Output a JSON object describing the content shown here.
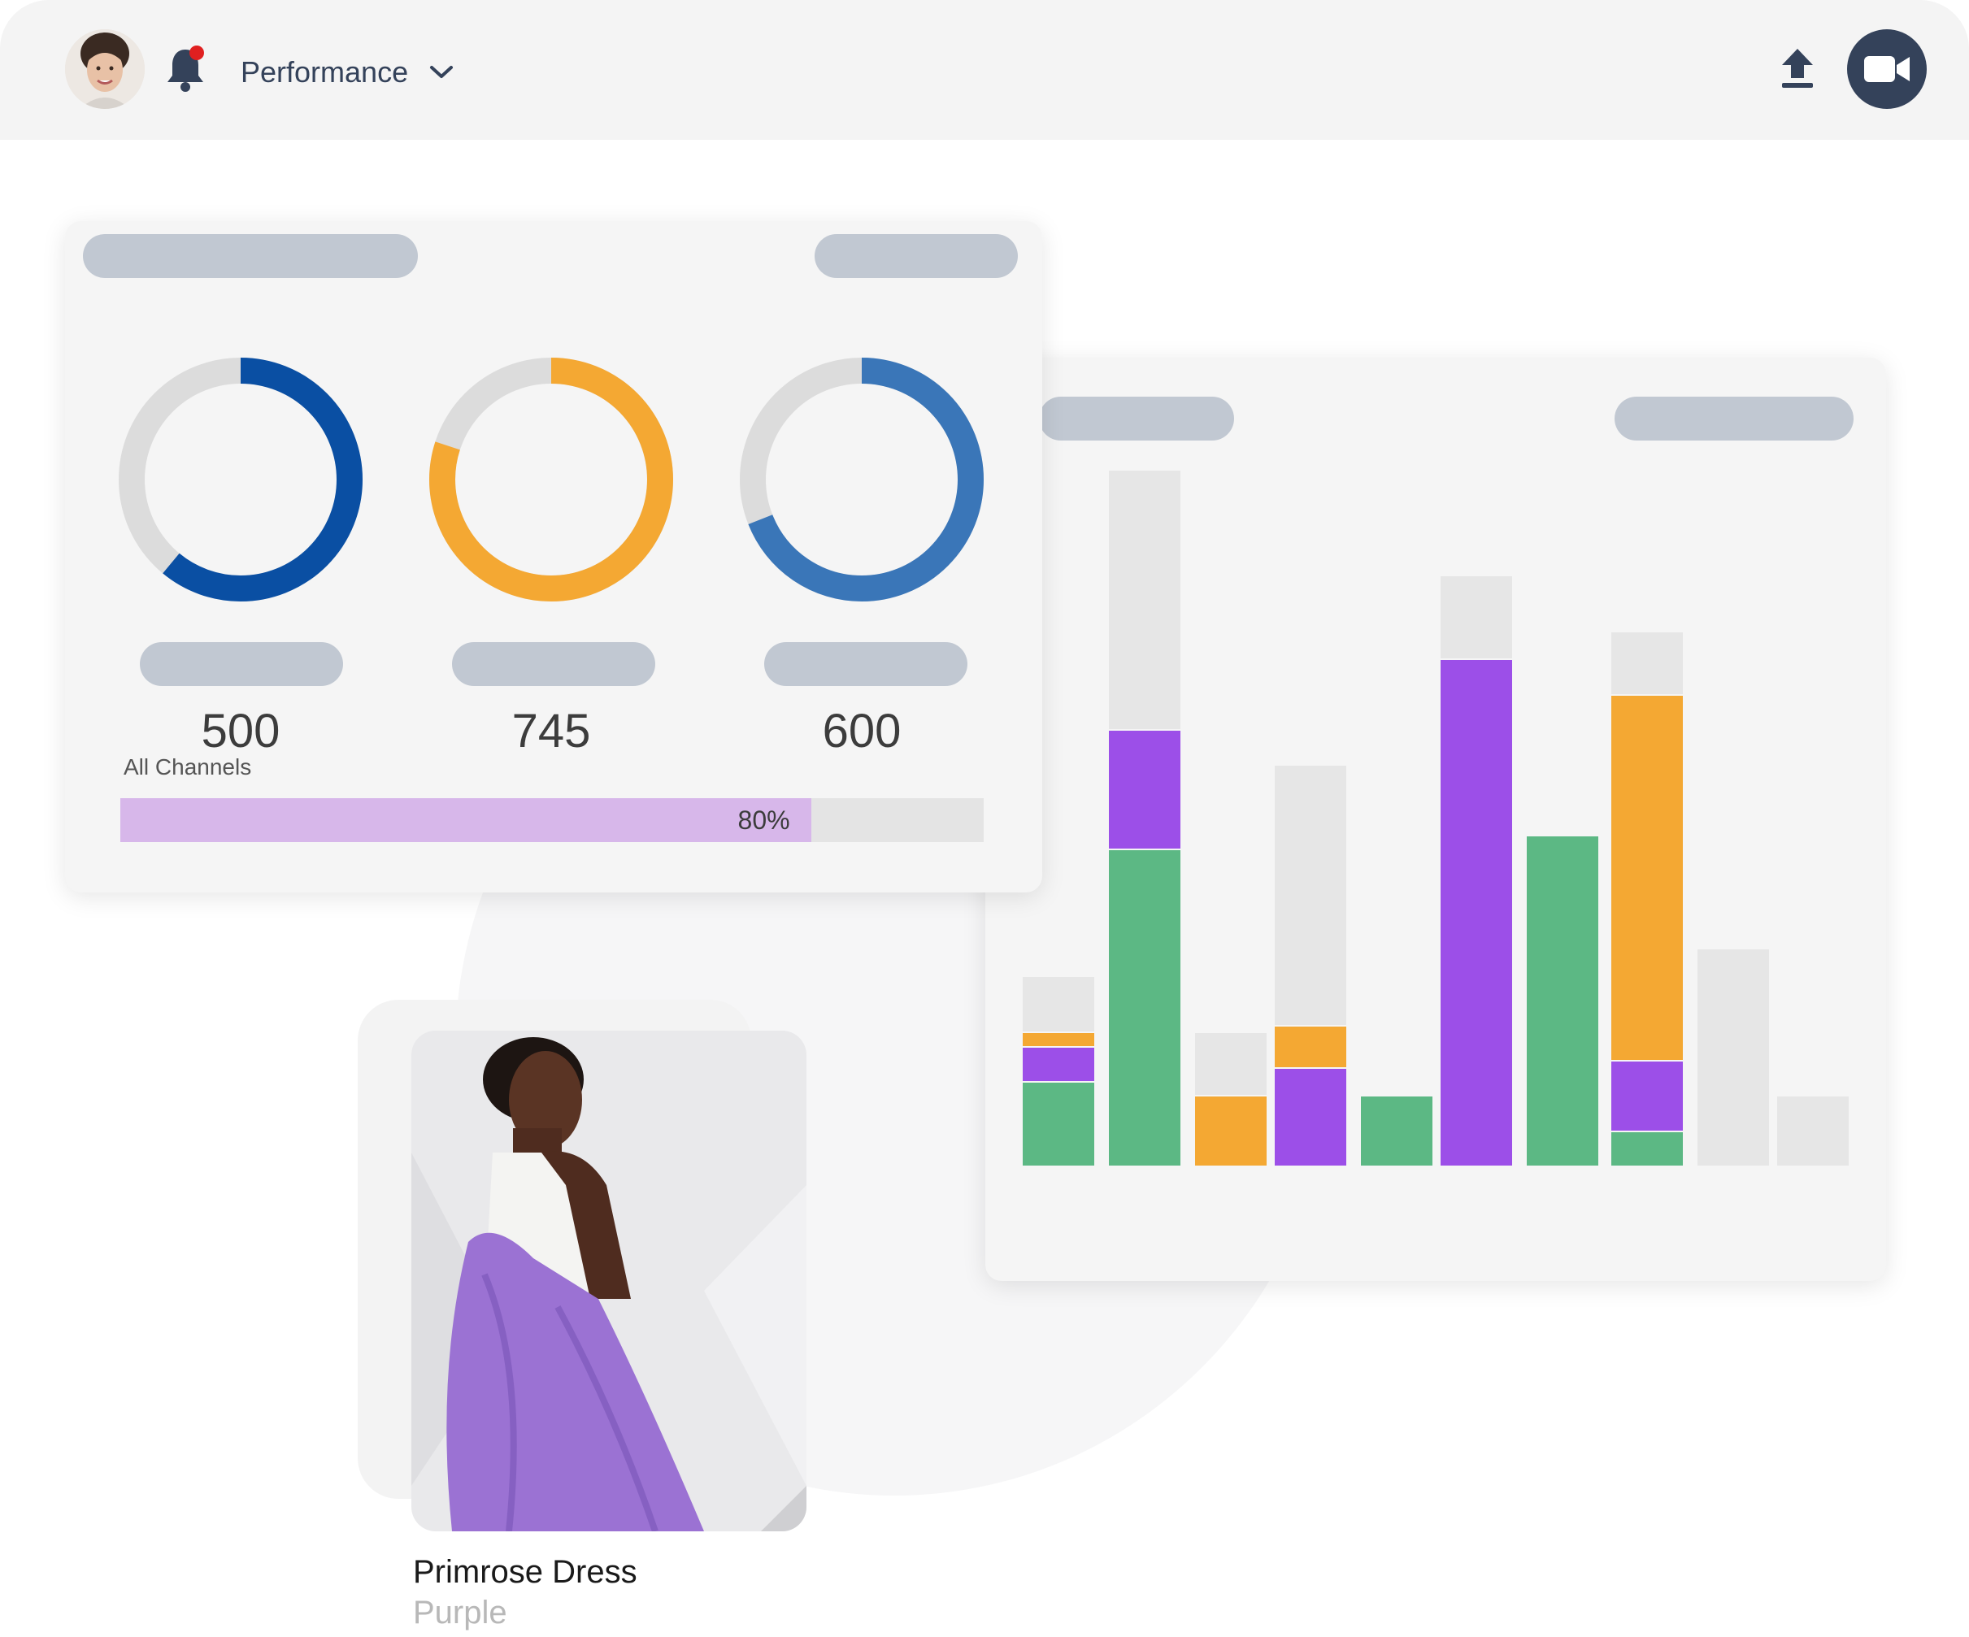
{
  "header": {
    "avatar_icon": "user-avatar",
    "bell_icon": "bell-icon",
    "notification_dot_color": "#e02020",
    "menu_label": "Performance",
    "upload_icon": "upload-icon",
    "video_icon": "video-camera-icon"
  },
  "stats": {
    "rings": [
      {
        "value": "500",
        "color": "#0a4fa3",
        "fill": 0.61
      },
      {
        "value": "745",
        "color": "#f4a833",
        "fill": 0.8
      },
      {
        "value": "600",
        "color": "#3a76b8",
        "fill": 0.69
      }
    ],
    "channels": {
      "label": "All Channels",
      "percent_label": "80%",
      "percent": 0.8,
      "fill_color": "#d7b7ea"
    }
  },
  "chart_data": {
    "type": "bar",
    "stacked": true,
    "colors": {
      "green": "#5cb884",
      "purple": "#9c4fe8",
      "orange": "#f4a833",
      "gray": "#e6e6e6"
    },
    "bars": [
      {
        "segments": [
          {
            "c": "green",
            "v": 12
          },
          {
            "c": "purple",
            "v": 5
          },
          {
            "c": "orange",
            "v": 2
          },
          {
            "c": "gray",
            "v": 8
          }
        ]
      },
      {
        "segments": [
          {
            "c": "green",
            "v": 45
          },
          {
            "c": "purple",
            "v": 17
          },
          {
            "c": "gray",
            "v": 37
          }
        ]
      },
      {
        "segments": [
          {
            "c": "orange",
            "v": 10
          },
          {
            "c": "gray",
            "v": 9
          }
        ]
      },
      {
        "segments": [
          {
            "c": "purple",
            "v": 14
          },
          {
            "c": "orange",
            "v": 6
          },
          {
            "c": "gray",
            "v": 37
          }
        ]
      },
      {
        "segments": [
          {
            "c": "green",
            "v": 10
          }
        ]
      },
      {
        "segments": [
          {
            "c": "purple",
            "v": 72
          },
          {
            "c": "gray",
            "v": 12
          }
        ]
      },
      {
        "segments": [
          {
            "c": "green",
            "v": 47
          }
        ]
      },
      {
        "segments": [
          {
            "c": "green",
            "v": 5
          },
          {
            "c": "purple",
            "v": 10
          },
          {
            "c": "orange",
            "v": 52
          },
          {
            "c": "gray",
            "v": 9
          }
        ]
      },
      {
        "segments": [
          {
            "c": "gray",
            "v": 31
          }
        ]
      },
      {
        "segments": [
          {
            "c": "gray",
            "v": 10
          }
        ]
      }
    ],
    "ylim": [
      0,
      100
    ]
  },
  "product": {
    "name": "Primrose Dress",
    "color": "Purple"
  }
}
